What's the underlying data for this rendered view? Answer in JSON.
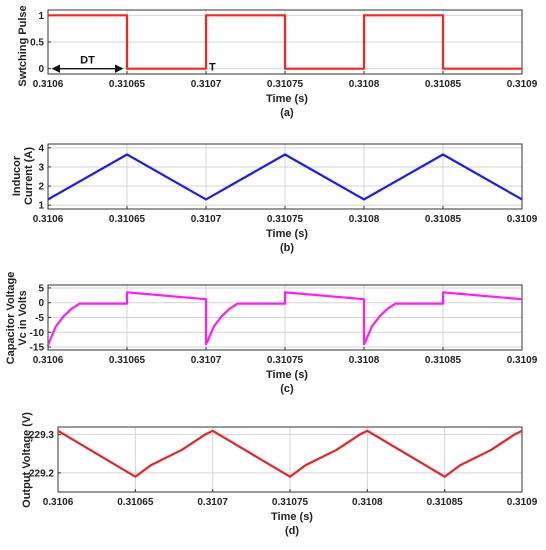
{
  "chart_data": [
    {
      "type": "line",
      "subtitle": "(a)",
      "xlabel": "Time (s)",
      "ylabel": "Swtching Pulse",
      "xlim": [
        0.3106,
        0.3109
      ],
      "ylim": [
        -0.1,
        1.1
      ],
      "xticks": [
        "0.3106",
        "0.31065",
        "0.3107",
        "0.31075",
        "0.3108",
        "0.31085",
        "0.3109"
      ],
      "yticks": [
        "0",
        "0.5",
        "1"
      ],
      "grid": true,
      "annotations": [
        "DT",
        "T"
      ],
      "series": [
        {
          "color": "#ff2020",
          "x": [
            0.3106,
            0.31065,
            0.31065,
            0.3107,
            0.3107,
            0.31075,
            0.31075,
            0.3108,
            0.3108,
            0.31085,
            0.31085,
            0.3109
          ],
          "y": [
            1,
            1,
            0,
            0,
            1,
            1,
            0,
            0,
            1,
            1,
            0,
            0
          ]
        }
      ]
    },
    {
      "type": "line",
      "subtitle": "(b)",
      "xlabel": "Time (s)",
      "ylabel": "Inducor\nCurrent (A)",
      "xlim": [
        0.3106,
        0.3109
      ],
      "ylim": [
        0.8,
        4.2
      ],
      "xticks": [
        "0.3106",
        "0.31065",
        "0.3107",
        "0.31075",
        "0.3108",
        "0.31085",
        "0.3109"
      ],
      "yticks": [
        "1",
        "2",
        "3",
        "4"
      ],
      "grid": true,
      "series": [
        {
          "color": "#1a1aff",
          "x": [
            0.3106,
            0.31065,
            0.3107,
            0.31075,
            0.3108,
            0.31085,
            0.3109
          ],
          "y": [
            1.3,
            3.65,
            1.3,
            3.65,
            1.3,
            3.65,
            1.3
          ]
        }
      ]
    },
    {
      "type": "line",
      "subtitle": "(c)",
      "xlabel": "Time (s)",
      "ylabel": "Capacitor Voltage\nVc  in Volts",
      "xlim": [
        0.3106,
        0.3109
      ],
      "ylim": [
        -16,
        6
      ],
      "xticks": [
        "0.3106",
        "0.31065",
        "0.3107",
        "0.31075",
        "0.3108",
        "0.31085",
        "0.3109"
      ],
      "yticks": [
        "-15",
        "-10",
        "-5",
        "0",
        "5"
      ],
      "grid": true,
      "series": [
        {
          "color": "#ff1aff",
          "x": [
            0.3106,
            0.310601,
            0.310605,
            0.31061,
            0.310615,
            0.31062,
            0.31065,
            0.31065,
            0.3107,
            0.3107,
            0.310701,
            0.310705,
            0.31071,
            0.310715,
            0.31072,
            0.31075,
            0.31075,
            0.3108,
            0.3108,
            0.310801,
            0.310805,
            0.31081,
            0.310815,
            0.31082,
            0.31085,
            0.31085,
            0.3109
          ],
          "y": [
            -14.5,
            -13,
            -8,
            -4.5,
            -2,
            -0.3,
            -0.3,
            3.5,
            1.2,
            -14,
            -13,
            -8,
            -4.5,
            -2,
            -0.3,
            -0.3,
            3.5,
            1.2,
            -14,
            -13,
            -8,
            -4.5,
            -2,
            -0.3,
            -0.3,
            3.5,
            1.2
          ]
        }
      ]
    },
    {
      "type": "line",
      "subtitle": "(d)",
      "xlabel": "Time (s)",
      "ylabel": "Output Voltage (V)",
      "xlim": [
        0.3106,
        0.3109
      ],
      "ylim": [
        229.15,
        229.32
      ],
      "xticks": [
        "0.3106",
        "0.31065",
        "0.3107",
        "0.31075",
        "0.3108",
        "0.31085",
        "0.3109"
      ],
      "yticks": [
        "229.2",
        "229.3"
      ],
      "grid": true,
      "series": [
        {
          "color": "#ee2222",
          "x": [
            0.3106,
            0.31065,
            0.31066,
            0.31068,
            0.310695,
            0.3107,
            0.31075,
            0.31076,
            0.31078,
            0.310795,
            0.3108,
            0.31085,
            0.31086,
            0.31088,
            0.310895,
            0.3109
          ],
          "y": [
            229.31,
            229.19,
            229.22,
            229.26,
            229.3,
            229.31,
            229.19,
            229.22,
            229.26,
            229.3,
            229.31,
            229.19,
            229.22,
            229.26,
            229.3,
            229.31
          ]
        }
      ]
    }
  ]
}
